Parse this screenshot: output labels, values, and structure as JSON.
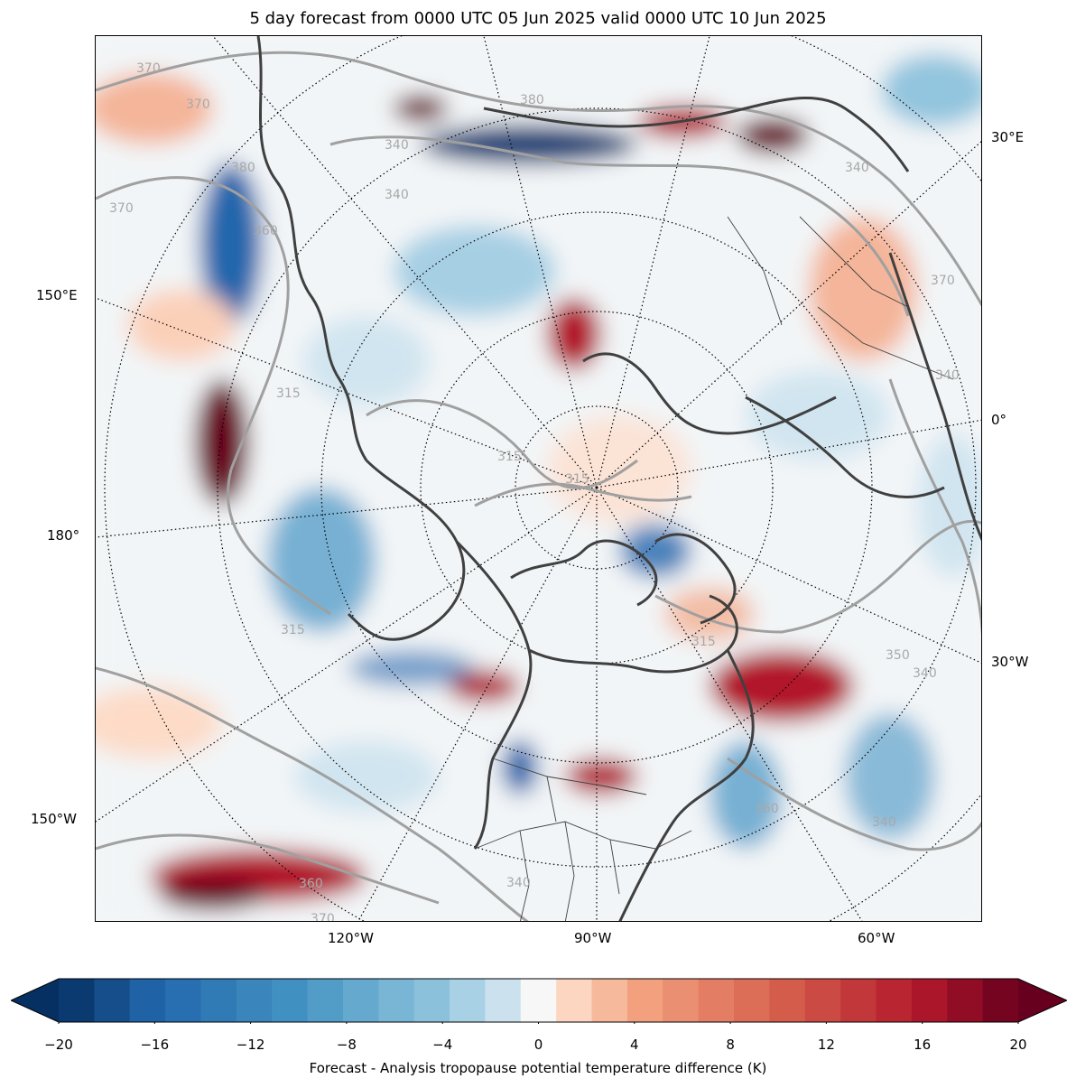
{
  "title": "5 day forecast from 0000 UTC 05 Jun 2025 valid 0000 UTC 10 Jun 2025",
  "map": {
    "projection": "north-polar-stereographic",
    "longitude_labels_left": [
      "150°E",
      "180°",
      "150°W"
    ],
    "longitude_labels_right": [
      "30°E",
      "0°",
      "30°W"
    ],
    "longitude_labels_bottom": [
      "120°W",
      "90°W",
      "60°W"
    ],
    "contour_labels": [
      "370",
      "370",
      "380",
      "340",
      "340",
      "360",
      "380",
      "370",
      "340",
      "315",
      "315",
      "315",
      "315",
      "350",
      "340",
      "360",
      "340",
      "360",
      "340",
      "370",
      "315",
      "340",
      "370"
    ],
    "contour_color": "#a0a0a0",
    "coastline_color": "#404040",
    "graticule_style": "dotted"
  },
  "colorbar": {
    "ticks": [
      "−20",
      "−16",
      "−12",
      "−8",
      "−4",
      "0",
      "4",
      "8",
      "12",
      "16",
      "20"
    ],
    "tick_values": [
      -20,
      -16,
      -12,
      -8,
      -4,
      0,
      4,
      8,
      12,
      16,
      20
    ],
    "min": -20,
    "max": 20,
    "step": 1.5,
    "label": "Forecast - Analysis tropopause potential temperature difference (K)",
    "colormap": "RdBu_r",
    "extend": "both"
  },
  "colors": {
    "deep_blue": "#053061",
    "mid_blue": "#4393c3",
    "white": "#f7f7f7",
    "mid_red": "#d6604d",
    "deep_red": "#67001f"
  }
}
